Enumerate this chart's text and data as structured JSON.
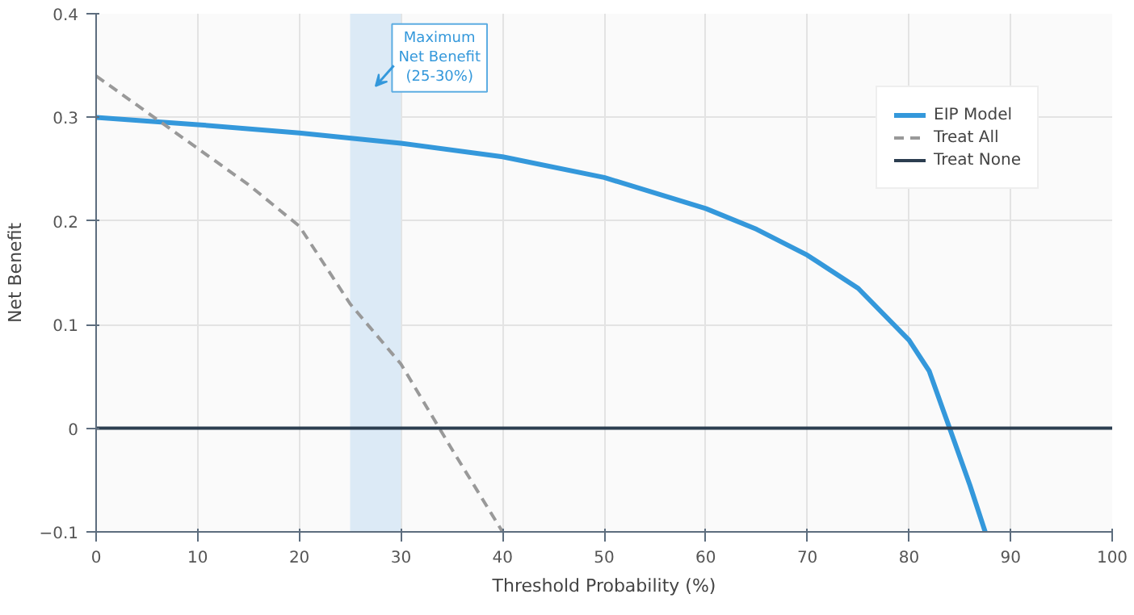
{
  "chart_data": {
    "type": "line",
    "xlabel": "Threshold Probability (%)",
    "ylabel": "Net Benefit",
    "xlim": [
      0,
      100
    ],
    "ylim": [
      -0.1,
      0.4
    ],
    "xticks": [
      0,
      10,
      20,
      30,
      40,
      50,
      60,
      70,
      80,
      90,
      100
    ],
    "yticks": [
      {
        "value": -0.1,
        "label": "−0.1"
      },
      0,
      0.1,
      0.2,
      0.3,
      0.4
    ],
    "grid": true,
    "legend": "top right",
    "series": [
      {
        "name": "EIP Model",
        "color": "#3498db",
        "line_style": "solid",
        "x": [
          0,
          10,
          20,
          30,
          40,
          50,
          60,
          65,
          70,
          75,
          80,
          82,
          84,
          86,
          87.5
        ],
        "values": [
          0.3,
          0.293,
          0.285,
          0.275,
          0.262,
          0.242,
          0.212,
          0.192,
          0.167,
          0.135,
          0.085,
          0.055,
          0.0,
          -0.055,
          -0.1
        ]
      },
      {
        "name": "Treat All",
        "color": "#999999",
        "line_style": "dashed",
        "x": [
          0,
          5,
          10,
          15,
          20,
          25,
          30,
          35,
          40
        ],
        "values": [
          0.34,
          0.305,
          0.27,
          0.235,
          0.195,
          0.12,
          0.062,
          -0.02,
          -0.1
        ]
      },
      {
        "name": "Treat None",
        "color": "#2c3e50",
        "line_style": "solid",
        "x": [
          0,
          100
        ],
        "values": [
          0,
          0
        ]
      }
    ],
    "bands": [
      {
        "axis": "x",
        "from": 25,
        "to": 30,
        "label": "Maximum\nNet Benefit\n(25-30%)",
        "color": "#dceaf6"
      }
    ]
  }
}
